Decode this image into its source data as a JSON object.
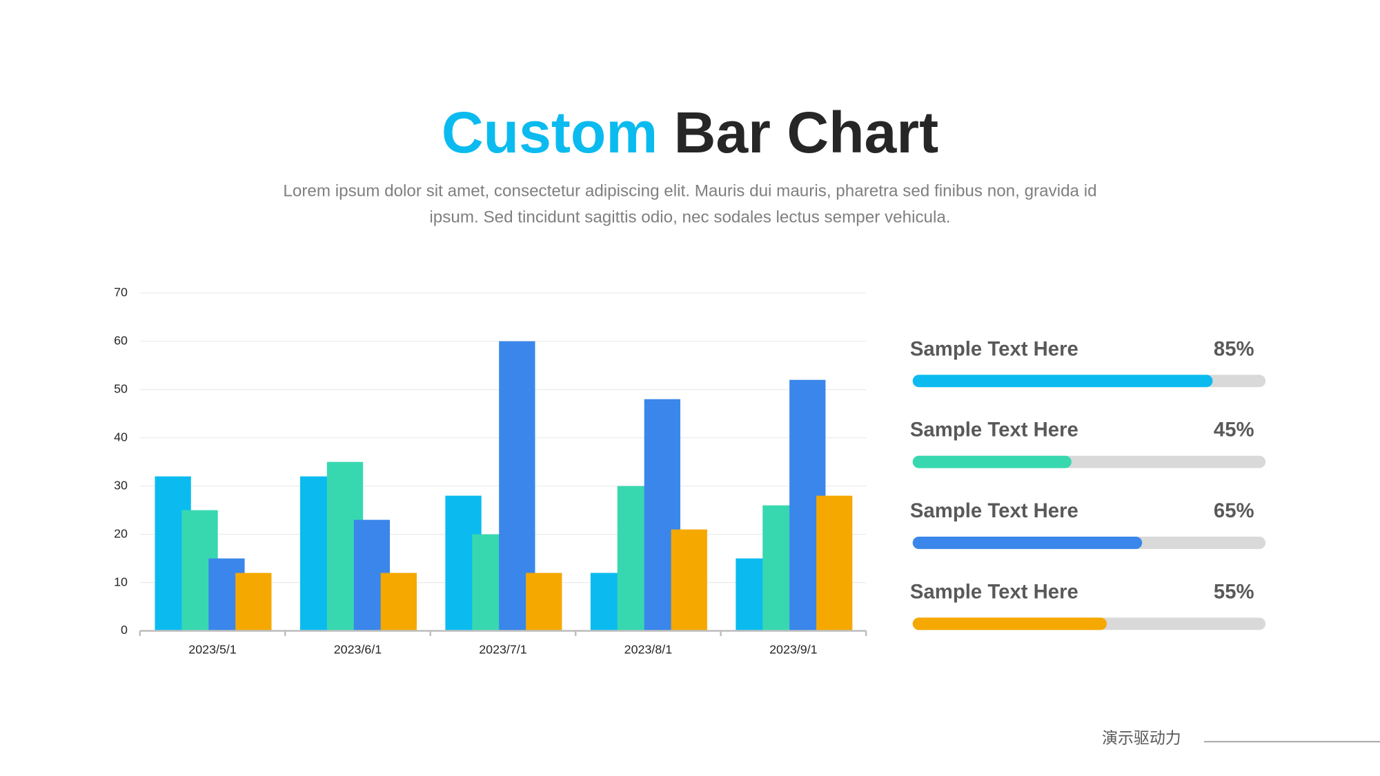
{
  "chart_data": {
    "type": "bar",
    "title": [
      "Custom",
      "Bar Chart"
    ],
    "subtitle": [
      "Lorem ipsum dolor sit amet, consectetur adipiscing elit. Mauris dui mauris, pharetra sed finibus non, gravida id",
      "ipsum. Sed tincidunt sagittis odio, nec sodales lectus semper vehicula."
    ],
    "categories": [
      "2023/5/1",
      "2023/6/1",
      "2023/7/1",
      "2023/8/1",
      "2023/9/1"
    ],
    "series": [
      {
        "color": "#0bbbef",
        "values": [
          32,
          32,
          28,
          12,
          15
        ]
      },
      {
        "color": "#37d8b0",
        "values": [
          25,
          35,
          20,
          30,
          26
        ]
      },
      {
        "color": "#3a86ea",
        "values": [
          15,
          23,
          60,
          48,
          52
        ]
      },
      {
        "color": "#f5a800",
        "values": [
          12,
          12,
          12,
          21,
          28
        ]
      }
    ],
    "ylim": [
      0,
      70
    ],
    "yticks": [
      0,
      10,
      20,
      30,
      40,
      50,
      60,
      70
    ],
    "grid": true
  },
  "progress": {
    "labels": [
      "Sample Text Here",
      "Sample Text Here",
      "Sample Text Here",
      "Sample Text Here"
    ],
    "values": [
      85,
      45,
      65,
      55
    ],
    "value_labels": [
      "85%",
      "45%",
      "65%",
      "55%"
    ],
    "colors": [
      "#0bbbef",
      "#37d8b0",
      "#3a86ea",
      "#f5a800"
    ]
  },
  "footer": "演示驱动力"
}
